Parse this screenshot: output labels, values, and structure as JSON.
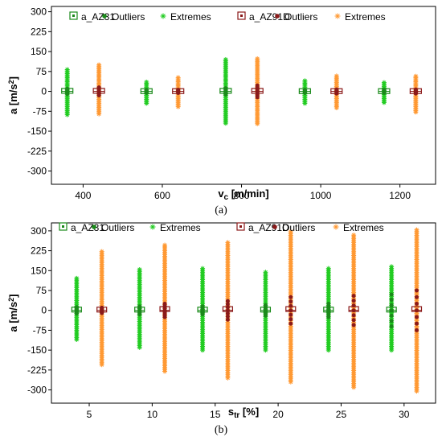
{
  "chart_data": [
    {
      "type": "box",
      "subfigure_label": "(a)",
      "xlabel_base": "v",
      "xlabel_sub": "c",
      "xlabel_rest": " [m/min]",
      "ylabel_base": "a [m/s",
      "ylabel_sup": "2",
      "ylabel_end": "]",
      "xlim": [
        320,
        1290
      ],
      "ylim": [
        -350,
        320
      ],
      "x_ticks": [
        400,
        600,
        800,
        1000,
        1200
      ],
      "y_ticks": [
        300,
        225,
        150,
        75,
        0,
        -75,
        -150,
        -225,
        -300
      ],
      "legend": [
        {
          "series": "AZ31",
          "marker": "box",
          "color": "#1a8a1a",
          "label": "a_AZ31"
        },
        {
          "series": "AZ31",
          "marker": "dot",
          "color": "#1a8a1a",
          "label": "Outliers"
        },
        {
          "series": "AZ31",
          "marker": "star",
          "color": "#22cc22",
          "label": "Extremes"
        },
        {
          "series": "AZ91D",
          "marker": "box",
          "color": "#8b1a1a",
          "label": "a_AZ91D"
        },
        {
          "series": "AZ91D",
          "marker": "dot",
          "color": "#8b1a1a",
          "label": "Outliers"
        },
        {
          "series": "AZ91D",
          "marker": "star",
          "color": "#ff9933",
          "label": "Extremes"
        }
      ],
      "series": [
        {
          "name": "a_AZ31",
          "box_color": "#1a8a1a",
          "outlier_color": "#1a8a1a",
          "extreme_color": "#22cc22",
          "points": [
            {
              "x": 360,
              "q1": -2,
              "q3": 2,
              "outlier_range": [
                -10,
                10
              ],
              "extreme_range": [
                -88,
                82
              ]
            },
            {
              "x": 560,
              "q1": -1,
              "q3": 1,
              "outlier_range": [
                -6,
                6
              ],
              "extreme_range": [
                -45,
                38
              ]
            },
            {
              "x": 760,
              "q1": -2,
              "q3": 2,
              "outlier_range": [
                -12,
                12
              ],
              "extreme_range": [
                -120,
                122
              ]
            },
            {
              "x": 960,
              "q1": -1,
              "q3": 1,
              "outlier_range": [
                -6,
                6
              ],
              "extreme_range": [
                -45,
                42
              ]
            },
            {
              "x": 1160,
              "q1": -1,
              "q3": 1,
              "outlier_range": [
                -6,
                6
              ],
              "extreme_range": [
                -42,
                35
              ]
            }
          ]
        },
        {
          "name": "a_AZ91D",
          "box_color": "#8b1a1a",
          "outlier_color": "#8b1a1a",
          "extreme_color": "#ff9933",
          "points": [
            {
              "x": 440,
              "q1": -2,
              "q3": 2,
              "outlier_range": [
                -15,
                15
              ],
              "extreme_range": [
                -85,
                100
              ]
            },
            {
              "x": 640,
              "q1": -1,
              "q3": 1,
              "outlier_range": [
                -6,
                6
              ],
              "extreme_range": [
                -58,
                52
              ]
            },
            {
              "x": 840,
              "q1": -2,
              "q3": 2,
              "outlier_range": [
                -22,
                22
              ],
              "extreme_range": [
                -122,
                125
              ]
            },
            {
              "x": 1040,
              "q1": -1,
              "q3": 1,
              "outlier_range": [
                -8,
                8
              ],
              "extreme_range": [
                -62,
                62
              ]
            },
            {
              "x": 1240,
              "q1": -1,
              "q3": 1,
              "outlier_range": [
                -8,
                8
              ],
              "extreme_range": [
                -78,
                60
              ]
            }
          ]
        }
      ]
    },
    {
      "type": "box",
      "subfigure_label": "(b)",
      "xlabel_base": "s",
      "xlabel_sub": "tr",
      "xlabel_rest": " [%]",
      "ylabel_base": "a [m/s",
      "ylabel_sup": "2",
      "ylabel_end": "]",
      "xlim": [
        2,
        32.5
      ],
      "ylim": [
        -350,
        330
      ],
      "x_ticks": [
        5,
        10,
        15,
        20,
        25,
        30
      ],
      "y_ticks": [
        300,
        225,
        150,
        75,
        0,
        -75,
        -150,
        -225,
        -300
      ],
      "legend": [
        {
          "series": "AZ31",
          "marker": "box",
          "color": "#1a8a1a",
          "label": "a_AZ31"
        },
        {
          "series": "AZ31",
          "marker": "dot",
          "color": "#1a8a1a",
          "label": "Outliers"
        },
        {
          "series": "AZ31",
          "marker": "star",
          "color": "#22cc22",
          "label": "Extremes"
        },
        {
          "series": "AZ91D",
          "marker": "box",
          "color": "#8b1a1a",
          "label": "a_AZ91D"
        },
        {
          "series": "AZ91D",
          "marker": "dot",
          "color": "#8b1a1a",
          "label": "Outliers"
        },
        {
          "series": "AZ91D",
          "marker": "star",
          "color": "#ff9933",
          "label": "Extremes"
        }
      ],
      "series": [
        {
          "name": "a_AZ31",
          "box_color": "#1a8a1a",
          "outlier_color": "#1a8a1a",
          "extreme_color": "#22cc22",
          "points": [
            {
              "x": 4,
              "q1": -3,
              "q3": 3,
              "outlier_range": [
                -12,
                12
              ],
              "extreme_range": [
                -110,
                125
              ]
            },
            {
              "x": 9,
              "q1": -3,
              "q3": 3,
              "outlier_range": [
                -15,
                15
              ],
              "extreme_range": [
                -140,
                155
              ]
            },
            {
              "x": 14,
              "q1": -3,
              "q3": 3,
              "outlier_range": [
                -15,
                15
              ],
              "extreme_range": [
                -150,
                160
              ]
            },
            {
              "x": 19,
              "q1": -3,
              "q3": 3,
              "outlier_range": [
                -20,
                20
              ],
              "extreme_range": [
                -150,
                150
              ]
            },
            {
              "x": 24,
              "q1": -3,
              "q3": 3,
              "outlier_range": [
                -25,
                25
              ],
              "extreme_range": [
                -150,
                160
              ]
            },
            {
              "x": 29,
              "q1": -3,
              "q3": 3,
              "outlier_range": [
                -60,
                60
              ],
              "extreme_range": [
                -150,
                165
              ]
            }
          ]
        },
        {
          "name": "a_AZ91D",
          "box_color": "#8b1a1a",
          "outlier_color": "#8b1a1a",
          "extreme_color": "#ff9933",
          "points": [
            {
              "x": 6,
              "q1": -3,
              "q3": 3,
              "outlier_range": [
                -10,
                10
              ],
              "extreme_range": [
                -205,
                225
              ]
            },
            {
              "x": 11,
              "q1": -5,
              "q3": 5,
              "outlier_range": [
                -25,
                25
              ],
              "extreme_range": [
                -230,
                250
              ]
            },
            {
              "x": 16,
              "q1": -5,
              "q3": 5,
              "outlier_range": [
                -35,
                35
              ],
              "extreme_range": [
                -255,
                260
              ]
            },
            {
              "x": 21,
              "q1": -5,
              "q3": 5,
              "outlier_range": [
                -50,
                50
              ],
              "extreme_range": [
                -270,
                300
              ]
            },
            {
              "x": 26,
              "q1": -5,
              "q3": 5,
              "outlier_range": [
                -55,
                55
              ],
              "extreme_range": [
                -290,
                290
              ]
            },
            {
              "x": 31,
              "q1": -5,
              "q3": 5,
              "outlier_range": [
                -75,
                75
              ],
              "extreme_range": [
                -305,
                310
              ]
            }
          ]
        }
      ]
    }
  ]
}
